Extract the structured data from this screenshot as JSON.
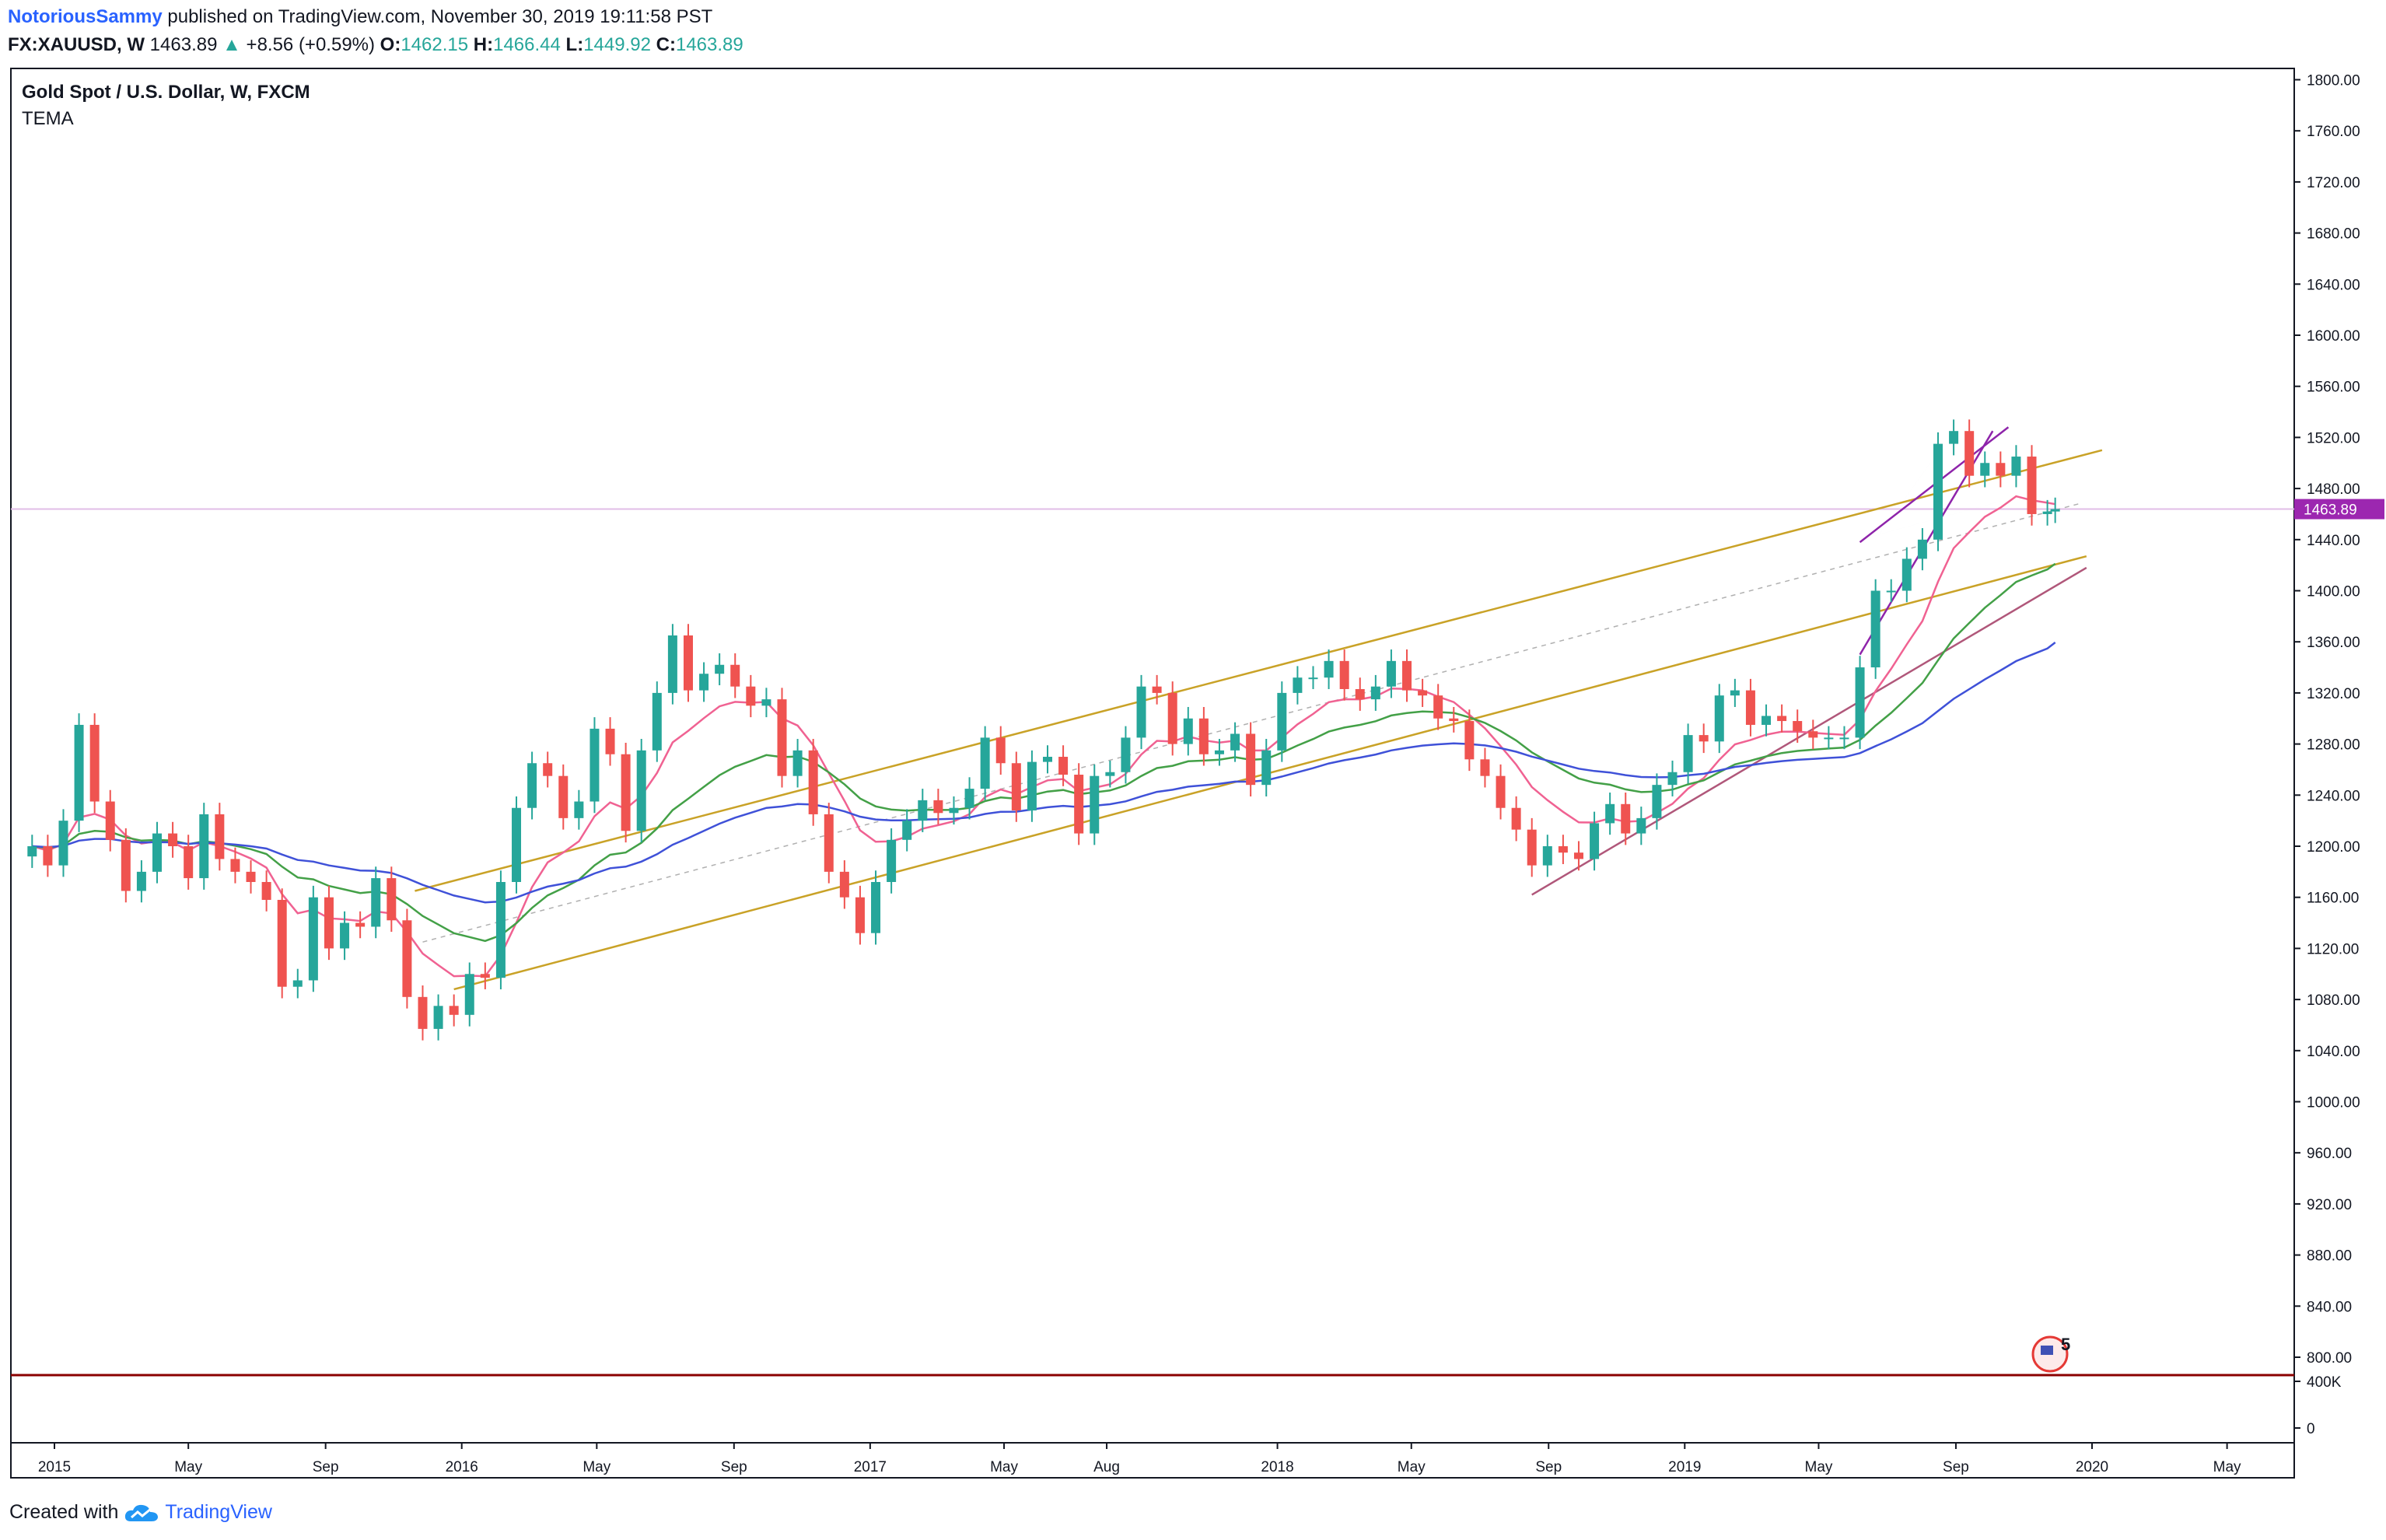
{
  "header": {
    "author": "NotoriousSammy",
    "published_text": " published on TradingView.com, November 30, 2019 19:11:58 PST",
    "symbol": "FX:XAUUSD, W",
    "last": "1463.89",
    "change_arrow": "▲",
    "change": "+8.56 (+0.59%)",
    "o_label": "O:",
    "o_value": "1462.15",
    "h_label": "H:",
    "h_value": "1466.44",
    "l_label": "L:",
    "l_value": "1449.92",
    "c_label": "C:",
    "c_value": "1463.89"
  },
  "legend": {
    "title": "Gold Spot / U.S. Dollar, W, FXCM",
    "indicator": "TEMA"
  },
  "footer": {
    "created_with": "Created with",
    "brand": "TradingView"
  },
  "price_axis": {
    "labels": [
      "1800.00",
      "1760.00",
      "1720.00",
      "1680.00",
      "1640.00",
      "1600.00",
      "1560.00",
      "1520.00",
      "1480.00",
      "1440.00",
      "1400.00",
      "1360.00",
      "1320.00",
      "1280.00",
      "1240.00",
      "1200.00",
      "1160.00",
      "1120.00",
      "1080.00",
      "1040.00",
      "1000.00",
      "960.00",
      "920.00",
      "880.00",
      "840.00",
      "800.00"
    ],
    "last_price_label": "1463.89"
  },
  "volume_axis": {
    "labels": [
      "400K",
      "0"
    ]
  },
  "events_badge": {
    "count": "5"
  },
  "colors": {
    "up": "#26a69a",
    "down": "#ef5350",
    "last_price": "#9c27b0",
    "channel": "#c9a227",
    "tema_fast": "#f06292",
    "tema_mid": "#43a047",
    "tema_slow": "#3f51d8",
    "support": "#b0577a",
    "volume_line": "#8b0000"
  },
  "chart_data": {
    "type": "candlestick",
    "title": "Gold Spot / U.S. Dollar, W, FXCM",
    "x_axis_labels": [
      {
        "label": "2015",
        "date": "2015-01-01"
      },
      {
        "label": "May",
        "date": "2015-05-01"
      },
      {
        "label": "Sep",
        "date": "2015-09-01"
      },
      {
        "label": "2016",
        "date": "2016-01-01"
      },
      {
        "label": "May",
        "date": "2016-05-01"
      },
      {
        "label": "Sep",
        "date": "2016-09-01"
      },
      {
        "label": "2017",
        "date": "2017-01-01"
      },
      {
        "label": "May",
        "date": "2017-05-01"
      },
      {
        "label": "Aug",
        "date": "2017-08-01"
      },
      {
        "label": "2018",
        "date": "2018-01-01"
      },
      {
        "label": "May",
        "date": "2018-05-01"
      },
      {
        "label": "Sep",
        "date": "2018-09-01"
      },
      {
        "label": "2019",
        "date": "2019-01-01"
      },
      {
        "label": "May",
        "date": "2019-05-01"
      },
      {
        "label": "Sep",
        "date": "2019-09-01"
      },
      {
        "label": "2020",
        "date": "2020-01-01"
      },
      {
        "label": "May",
        "date": "2020-05-01"
      }
    ],
    "ylim": [
      780,
      1820
    ],
    "last_price": 1463.89,
    "series_close": [
      {
        "date": "2014-12-12",
        "close": 1200
      },
      {
        "date": "2014-12-26",
        "close": 1185
      },
      {
        "date": "2015-01-09",
        "close": 1220
      },
      {
        "date": "2015-01-23",
        "close": 1295
      },
      {
        "date": "2015-02-06",
        "close": 1235
      },
      {
        "date": "2015-02-20",
        "close": 1205
      },
      {
        "date": "2015-03-06",
        "close": 1165
      },
      {
        "date": "2015-03-20",
        "close": 1180
      },
      {
        "date": "2015-04-03",
        "close": 1210
      },
      {
        "date": "2015-04-17",
        "close": 1200
      },
      {
        "date": "2015-05-01",
        "close": 1175
      },
      {
        "date": "2015-05-15",
        "close": 1225
      },
      {
        "date": "2015-05-29",
        "close": 1190
      },
      {
        "date": "2015-06-12",
        "close": 1180
      },
      {
        "date": "2015-06-26",
        "close": 1172
      },
      {
        "date": "2015-07-10",
        "close": 1158
      },
      {
        "date": "2015-07-24",
        "close": 1090
      },
      {
        "date": "2015-08-07",
        "close": 1095
      },
      {
        "date": "2015-08-21",
        "close": 1160
      },
      {
        "date": "2015-09-04",
        "close": 1120
      },
      {
        "date": "2015-09-18",
        "close": 1140
      },
      {
        "date": "2015-10-02",
        "close": 1137
      },
      {
        "date": "2015-10-16",
        "close": 1175
      },
      {
        "date": "2015-10-30",
        "close": 1142
      },
      {
        "date": "2015-11-13",
        "close": 1082
      },
      {
        "date": "2015-11-27",
        "close": 1057
      },
      {
        "date": "2015-12-11",
        "close": 1075
      },
      {
        "date": "2015-12-25",
        "close": 1068
      },
      {
        "date": "2016-01-08",
        "close": 1100
      },
      {
        "date": "2016-01-22",
        "close": 1097
      },
      {
        "date": "2016-02-05",
        "close": 1172
      },
      {
        "date": "2016-02-19",
        "close": 1230
      },
      {
        "date": "2016-03-04",
        "close": 1265
      },
      {
        "date": "2016-03-18",
        "close": 1255
      },
      {
        "date": "2016-04-01",
        "close": 1222
      },
      {
        "date": "2016-04-15",
        "close": 1235
      },
      {
        "date": "2016-04-29",
        "close": 1292
      },
      {
        "date": "2016-05-13",
        "close": 1272
      },
      {
        "date": "2016-05-27",
        "close": 1212
      },
      {
        "date": "2016-06-10",
        "close": 1275
      },
      {
        "date": "2016-06-24",
        "close": 1320
      },
      {
        "date": "2016-07-08",
        "close": 1365
      },
      {
        "date": "2016-07-22",
        "close": 1322
      },
      {
        "date": "2016-08-05",
        "close": 1335
      },
      {
        "date": "2016-08-19",
        "close": 1342
      },
      {
        "date": "2016-09-02",
        "close": 1325
      },
      {
        "date": "2016-09-16",
        "close": 1310
      },
      {
        "date": "2016-09-30",
        "close": 1315
      },
      {
        "date": "2016-10-14",
        "close": 1255
      },
      {
        "date": "2016-10-28",
        "close": 1275
      },
      {
        "date": "2016-11-11",
        "close": 1225
      },
      {
        "date": "2016-11-25",
        "close": 1180
      },
      {
        "date": "2016-12-09",
        "close": 1160
      },
      {
        "date": "2016-12-23",
        "close": 1132
      },
      {
        "date": "2017-01-06",
        "close": 1172
      },
      {
        "date": "2017-01-20",
        "close": 1205
      },
      {
        "date": "2017-02-03",
        "close": 1220
      },
      {
        "date": "2017-02-17",
        "close": 1236
      },
      {
        "date": "2017-03-03",
        "close": 1226
      },
      {
        "date": "2017-03-17",
        "close": 1230
      },
      {
        "date": "2017-03-31",
        "close": 1245
      },
      {
        "date": "2017-04-14",
        "close": 1285
      },
      {
        "date": "2017-04-28",
        "close": 1265
      },
      {
        "date": "2017-05-12",
        "close": 1228
      },
      {
        "date": "2017-05-26",
        "close": 1266
      },
      {
        "date": "2017-06-09",
        "close": 1270
      },
      {
        "date": "2017-06-23",
        "close": 1256
      },
      {
        "date": "2017-07-07",
        "close": 1210
      },
      {
        "date": "2017-07-21",
        "close": 1255
      },
      {
        "date": "2017-08-04",
        "close": 1258
      },
      {
        "date": "2017-08-18",
        "close": 1285
      },
      {
        "date": "2017-09-01",
        "close": 1325
      },
      {
        "date": "2017-09-15",
        "close": 1320
      },
      {
        "date": "2017-09-29",
        "close": 1280
      },
      {
        "date": "2017-10-13",
        "close": 1300
      },
      {
        "date": "2017-10-27",
        "close": 1272
      },
      {
        "date": "2017-11-10",
        "close": 1275
      },
      {
        "date": "2017-11-24",
        "close": 1288
      },
      {
        "date": "2017-12-08",
        "close": 1248
      },
      {
        "date": "2017-12-22",
        "close": 1275
      },
      {
        "date": "2018-01-05",
        "close": 1320
      },
      {
        "date": "2018-01-19",
        "close": 1332
      },
      {
        "date": "2018-02-02",
        "close": 1332
      },
      {
        "date": "2018-02-16",
        "close": 1345
      },
      {
        "date": "2018-03-02",
        "close": 1323
      },
      {
        "date": "2018-03-16",
        "close": 1315
      },
      {
        "date": "2018-03-30",
        "close": 1325
      },
      {
        "date": "2018-04-13",
        "close": 1345
      },
      {
        "date": "2018-04-27",
        "close": 1322
      },
      {
        "date": "2018-05-11",
        "close": 1318
      },
      {
        "date": "2018-05-25",
        "close": 1300
      },
      {
        "date": "2018-06-08",
        "close": 1298
      },
      {
        "date": "2018-06-22",
        "close": 1268
      },
      {
        "date": "2018-07-06",
        "close": 1255
      },
      {
        "date": "2018-07-20",
        "close": 1230
      },
      {
        "date": "2018-08-03",
        "close": 1213
      },
      {
        "date": "2018-08-17",
        "close": 1185
      },
      {
        "date": "2018-08-31",
        "close": 1200
      },
      {
        "date": "2018-09-14",
        "close": 1195
      },
      {
        "date": "2018-09-28",
        "close": 1190
      },
      {
        "date": "2018-10-12",
        "close": 1218
      },
      {
        "date": "2018-10-26",
        "close": 1233
      },
      {
        "date": "2018-11-09",
        "close": 1210
      },
      {
        "date": "2018-11-23",
        "close": 1222
      },
      {
        "date": "2018-12-07",
        "close": 1248
      },
      {
        "date": "2018-12-21",
        "close": 1258
      },
      {
        "date": "2019-01-04",
        "close": 1287
      },
      {
        "date": "2019-01-18",
        "close": 1282
      },
      {
        "date": "2019-02-01",
        "close": 1318
      },
      {
        "date": "2019-02-15",
        "close": 1322
      },
      {
        "date": "2019-03-01",
        "close": 1295
      },
      {
        "date": "2019-03-15",
        "close": 1302
      },
      {
        "date": "2019-03-29",
        "close": 1298
      },
      {
        "date": "2019-04-12",
        "close": 1290
      },
      {
        "date": "2019-04-26",
        "close": 1285
      },
      {
        "date": "2019-05-10",
        "close": 1285
      },
      {
        "date": "2019-05-24",
        "close": 1285
      },
      {
        "date": "2019-06-07",
        "close": 1340
      },
      {
        "date": "2019-06-21",
        "close": 1400
      },
      {
        "date": "2019-07-05",
        "close": 1400
      },
      {
        "date": "2019-07-19",
        "close": 1425
      },
      {
        "date": "2019-08-02",
        "close": 1440
      },
      {
        "date": "2019-08-16",
        "close": 1515
      },
      {
        "date": "2019-08-30",
        "close": 1525
      },
      {
        "date": "2019-09-13",
        "close": 1490
      },
      {
        "date": "2019-09-27",
        "close": 1500
      },
      {
        "date": "2019-10-11",
        "close": 1490
      },
      {
        "date": "2019-10-25",
        "close": 1505
      },
      {
        "date": "2019-11-08",
        "close": 1460
      },
      {
        "date": "2019-11-22",
        "close": 1462
      },
      {
        "date": "2019-11-29",
        "close": 1463.89
      }
    ],
    "indicator": "TEMA"
  }
}
